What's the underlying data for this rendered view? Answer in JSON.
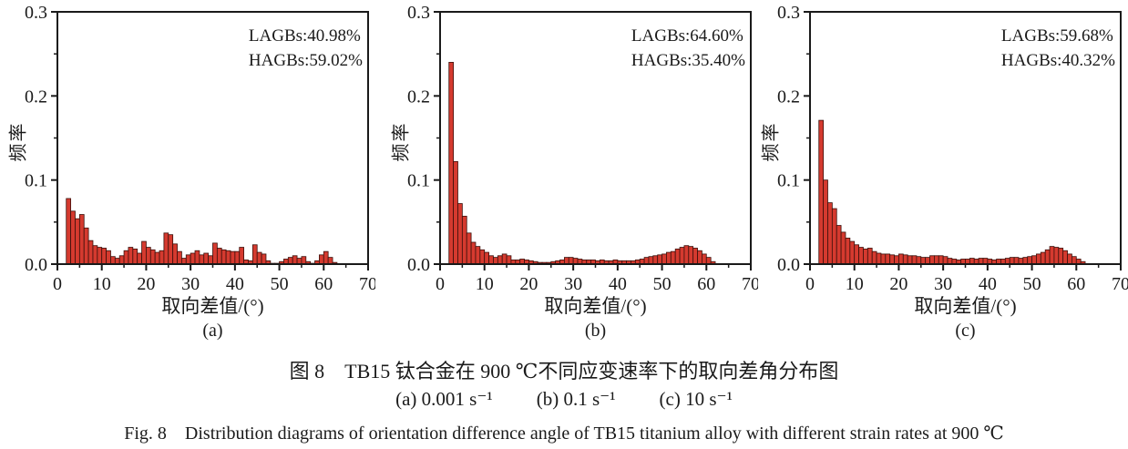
{
  "figure": {
    "caption_zh": "图 8　TB15 钛合金在 900 ℃不同应变速率下的取向差角分布图",
    "rate_labels": [
      "(a) 0.001 s⁻¹",
      "(b) 0.1 s⁻¹",
      "(c) 10 s⁻¹"
    ],
    "caption_en": "Fig. 8　Distribution diagrams of orientation difference angle of TB15 titanium alloy with different strain rates at 900 ℃"
  },
  "colors": {
    "bar_fill": "#d53a2f",
    "bar_stroke": "#3c100b",
    "axis": "#1a1a1a",
    "text": "#1a1a1a"
  },
  "chart_data": [
    {
      "type": "bar",
      "panel_label": "(a)",
      "strain_rate": "0.001 s⁻¹",
      "xlabel": "取向差值/(°)",
      "ylabel": "频率",
      "annotations": [
        "LAGBs:40.98%",
        "HAGBs:59.02%"
      ],
      "xlim": [
        0,
        70
      ],
      "ylim": [
        0,
        0.3
      ],
      "x_ticks": [
        0,
        10,
        20,
        30,
        40,
        50,
        60,
        70
      ],
      "y_ticks": [
        "0.0",
        "0.1",
        "0.2",
        "0.3"
      ],
      "x_minor_step": 5,
      "y_minor_step": 0.05,
      "grid": false,
      "bin_start": 2,
      "bin_width": 1,
      "values": [
        0.078,
        0.063,
        0.054,
        0.059,
        0.043,
        0.028,
        0.022,
        0.02,
        0.019,
        0.016,
        0.009,
        0.007,
        0.01,
        0.016,
        0.02,
        0.018,
        0.013,
        0.027,
        0.02,
        0.017,
        0.014,
        0.016,
        0.037,
        0.035,
        0.024,
        0.015,
        0.007,
        0.011,
        0.013,
        0.016,
        0.011,
        0.013,
        0.01,
        0.025,
        0.019,
        0.017,
        0.016,
        0.015,
        0.015,
        0.02,
        0.005,
        0.004,
        0.023,
        0.014,
        0.012,
        0.004,
        0.001,
        0.001,
        0.003,
        0.006,
        0.008,
        0.01,
        0.007,
        0.009,
        0.003,
        0.001,
        0.004,
        0.011,
        0.015,
        0.008,
        0.002
      ]
    },
    {
      "type": "bar",
      "panel_label": "(b)",
      "strain_rate": "0.1 s⁻¹",
      "xlabel": "取向差值/(°)",
      "ylabel": "频率",
      "annotations": [
        "LAGBs:64.60%",
        "HAGBs:35.40%"
      ],
      "xlim": [
        0,
        70
      ],
      "ylim": [
        0,
        0.3
      ],
      "x_ticks": [
        0,
        10,
        20,
        30,
        40,
        50,
        60,
        70
      ],
      "y_ticks": [
        "0.0",
        "0.1",
        "0.2",
        "0.3"
      ],
      "x_minor_step": 5,
      "y_minor_step": 0.05,
      "grid": false,
      "bin_start": 2,
      "bin_width": 1,
      "values": [
        0.24,
        0.122,
        0.072,
        0.057,
        0.037,
        0.026,
        0.021,
        0.017,
        0.014,
        0.01,
        0.008,
        0.01,
        0.012,
        0.01,
        0.005,
        0.005,
        0.006,
        0.005,
        0.004,
        0.003,
        0.002,
        0.002,
        0.002,
        0.003,
        0.004,
        0.005,
        0.008,
        0.008,
        0.007,
        0.006,
        0.005,
        0.005,
        0.005,
        0.004,
        0.005,
        0.004,
        0.004,
        0.005,
        0.004,
        0.004,
        0.004,
        0.004,
        0.005,
        0.006,
        0.008,
        0.009,
        0.01,
        0.011,
        0.012,
        0.014,
        0.015,
        0.018,
        0.02,
        0.022,
        0.021,
        0.019,
        0.016,
        0.012,
        0.008,
        0.003
      ]
    },
    {
      "type": "bar",
      "panel_label": "(c)",
      "strain_rate": "10 s⁻¹",
      "xlabel": "取向差值/(°)",
      "ylabel": "频率",
      "annotations": [
        "LAGBs:59.68%",
        "HAGBs:40.32%"
      ],
      "xlim": [
        0,
        70
      ],
      "ylim": [
        0,
        0.3
      ],
      "x_ticks": [
        0,
        10,
        20,
        30,
        40,
        50,
        60,
        70
      ],
      "y_ticks": [
        "0.0",
        "0.1",
        "0.2",
        "0.3"
      ],
      "x_minor_step": 5,
      "y_minor_step": 0.05,
      "grid": false,
      "bin_start": 2,
      "bin_width": 1,
      "values": [
        0.171,
        0.1,
        0.073,
        0.066,
        0.046,
        0.038,
        0.031,
        0.027,
        0.023,
        0.02,
        0.018,
        0.019,
        0.015,
        0.013,
        0.012,
        0.012,
        0.011,
        0.01,
        0.012,
        0.011,
        0.01,
        0.01,
        0.009,
        0.008,
        0.008,
        0.01,
        0.01,
        0.01,
        0.009,
        0.007,
        0.006,
        0.005,
        0.006,
        0.006,
        0.007,
        0.006,
        0.007,
        0.007,
        0.006,
        0.005,
        0.006,
        0.006,
        0.007,
        0.008,
        0.008,
        0.007,
        0.008,
        0.009,
        0.01,
        0.012,
        0.014,
        0.017,
        0.021,
        0.02,
        0.019,
        0.016,
        0.012,
        0.009,
        0.006,
        0.003
      ]
    }
  ]
}
